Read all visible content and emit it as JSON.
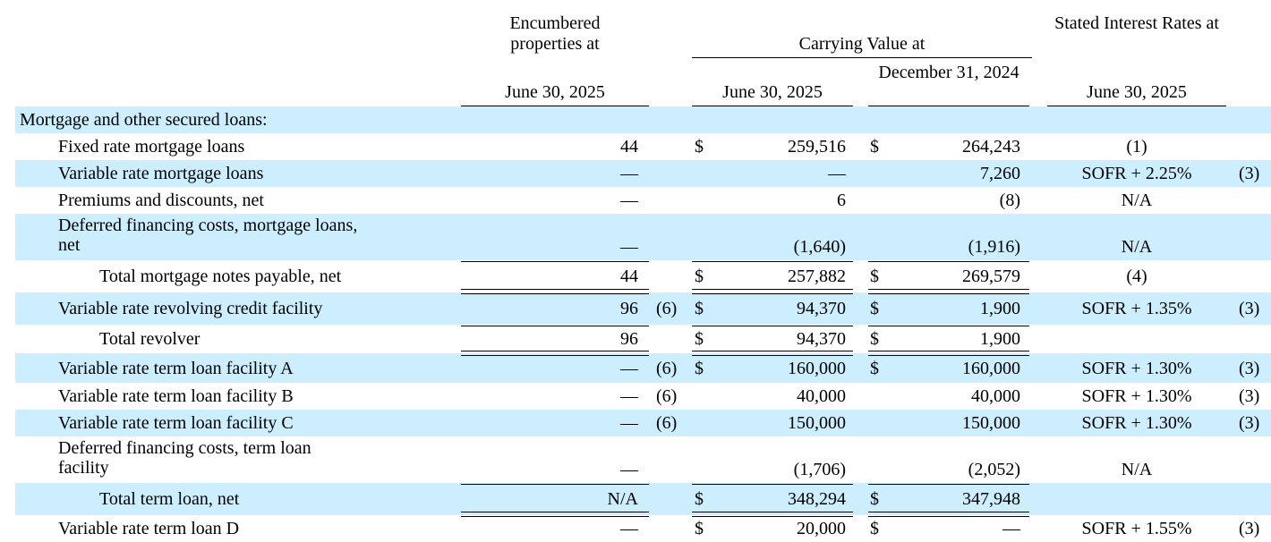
{
  "headers": {
    "encumbered": "Encumbered properties at",
    "encumbered_date": "June 30, 2025",
    "carrying_value": "Carrying Value at",
    "cv_date1": "June 30, 2025",
    "cv_date2": "December 31, 2024",
    "stated_rates": "Stated Interest Rates at",
    "rates_date": "June 30, 2025"
  },
  "section_title": "Mortgage and other secured loans:",
  "rows": [
    {
      "label": "Fixed rate mortgage loans",
      "enc": "44",
      "enc_fn": "",
      "dollar1": "$",
      "v1": "259,516",
      "dollar2": "$",
      "v2": "264,243",
      "rate": "(1)",
      "rate_fn": ""
    },
    {
      "label": "Variable rate mortgage loans",
      "enc": "—",
      "enc_fn": "",
      "dollar1": "",
      "v1": "—",
      "dollar2": "",
      "v2": "7,260",
      "rate": "SOFR + 2.25%",
      "rate_fn": "(3)"
    },
    {
      "label": "Premiums and discounts, net",
      "enc": "—",
      "enc_fn": "",
      "dollar1": "",
      "v1": "6",
      "dollar2": "",
      "v2": "(8)",
      "rate": "N/A",
      "rate_fn": ""
    },
    {
      "label": "Deferred financing costs, mortgage loans, net",
      "enc": "—",
      "enc_fn": "",
      "dollar1": "",
      "v1": "(1,640)",
      "dollar2": "",
      "v2": "(1,916)",
      "rate": "N/A",
      "rate_fn": ""
    },
    {
      "label": "Total mortgage notes payable, net",
      "enc": "44",
      "enc_fn": "",
      "dollar1": "$",
      "v1": "257,882",
      "dollar2": "$",
      "v2": "269,579",
      "rate": "(4)",
      "rate_fn": ""
    },
    {
      "label": "Variable rate revolving credit facility",
      "enc": "96",
      "enc_fn": "(6)",
      "dollar1": "$",
      "v1": "94,370",
      "dollar2": "$",
      "v2": "1,900",
      "rate": "SOFR + 1.35%",
      "rate_fn": "(3)"
    },
    {
      "label": "Total revolver",
      "enc": "96",
      "enc_fn": "",
      "dollar1": "$",
      "v1": "94,370",
      "dollar2": "$",
      "v2": "1,900",
      "rate": "",
      "rate_fn": ""
    },
    {
      "label": "Variable rate term loan facility A",
      "enc": "—",
      "enc_fn": "(6)",
      "dollar1": "$",
      "v1": "160,000",
      "dollar2": "$",
      "v2": "160,000",
      "rate": "SOFR + 1.30%",
      "rate_fn": "(3)"
    },
    {
      "label": "Variable rate term loan facility B",
      "enc": "—",
      "enc_fn": "(6)",
      "dollar1": "",
      "v1": "40,000",
      "dollar2": "",
      "v2": "40,000",
      "rate": "SOFR + 1.30%",
      "rate_fn": "(3)"
    },
    {
      "label": "Variable rate term loan facility C",
      "enc": "—",
      "enc_fn": "(6)",
      "dollar1": "",
      "v1": "150,000",
      "dollar2": "",
      "v2": "150,000",
      "rate": "SOFR + 1.30%",
      "rate_fn": "(3)"
    },
    {
      "label": "Deferred financing costs, term loan facility",
      "enc": "—",
      "enc_fn": "",
      "dollar1": "",
      "v1": "(1,706)",
      "dollar2": "",
      "v2": "(2,052)",
      "rate": "N/A",
      "rate_fn": ""
    },
    {
      "label": "Total term loan, net",
      "enc": "N/A",
      "enc_fn": "",
      "dollar1": "$",
      "v1": "348,294",
      "dollar2": "$",
      "v2": "347,948",
      "rate": "",
      "rate_fn": ""
    },
    {
      "label": "Variable rate term loan D",
      "enc": "—",
      "enc_fn": "",
      "dollar1": "$",
      "v1": "20,000",
      "dollar2": "$",
      "v2": "—",
      "rate": "SOFR + 1.55%",
      "rate_fn": "(3)"
    }
  ]
}
